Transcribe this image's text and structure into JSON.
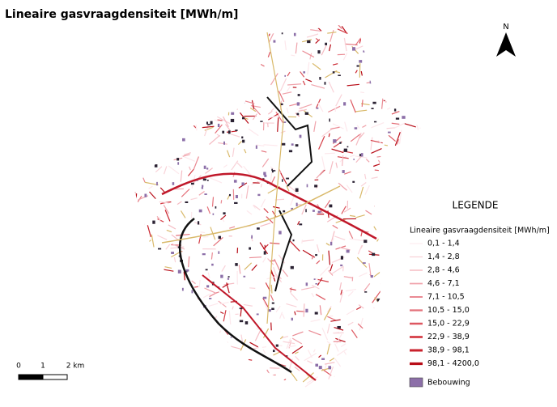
{
  "title": "Lineaire gasvraagdensiteit [MWh/m]",
  "north": "N",
  "legend": {
    "heading": "LEGENDE",
    "subheading": "Lineaire gasvraagdensiteit [MWh/m]",
    "classes": [
      {
        "label": "0,1 - 1,4",
        "color": "#fde8ec"
      },
      {
        "label": "1,4 - 2,8",
        "color": "#f9d2d8"
      },
      {
        "label": "2,8 - 4,6",
        "color": "#f5bcc3"
      },
      {
        "label": "4,6 - 7,1",
        "color": "#f0a3ab"
      },
      {
        "label": "7,1 - 10,5",
        "color": "#ea8a93"
      },
      {
        "label": "10,5 - 15,0",
        "color": "#e4717a"
      },
      {
        "label": "15,0 - 22,9",
        "color": "#dd5760"
      },
      {
        "label": "22,9 - 38,9",
        "color": "#d43d46"
      },
      {
        "label": "38,9 - 98,1",
        "color": "#c9222c"
      },
      {
        "label": "98,1 - 4200,0",
        "color": "#b80d18"
      }
    ],
    "buildings": {
      "label": "Bebouwing",
      "color": "#8c6fa8"
    }
  },
  "scale_bar": {
    "labels": [
      "0",
      "1",
      "2 km"
    ]
  }
}
